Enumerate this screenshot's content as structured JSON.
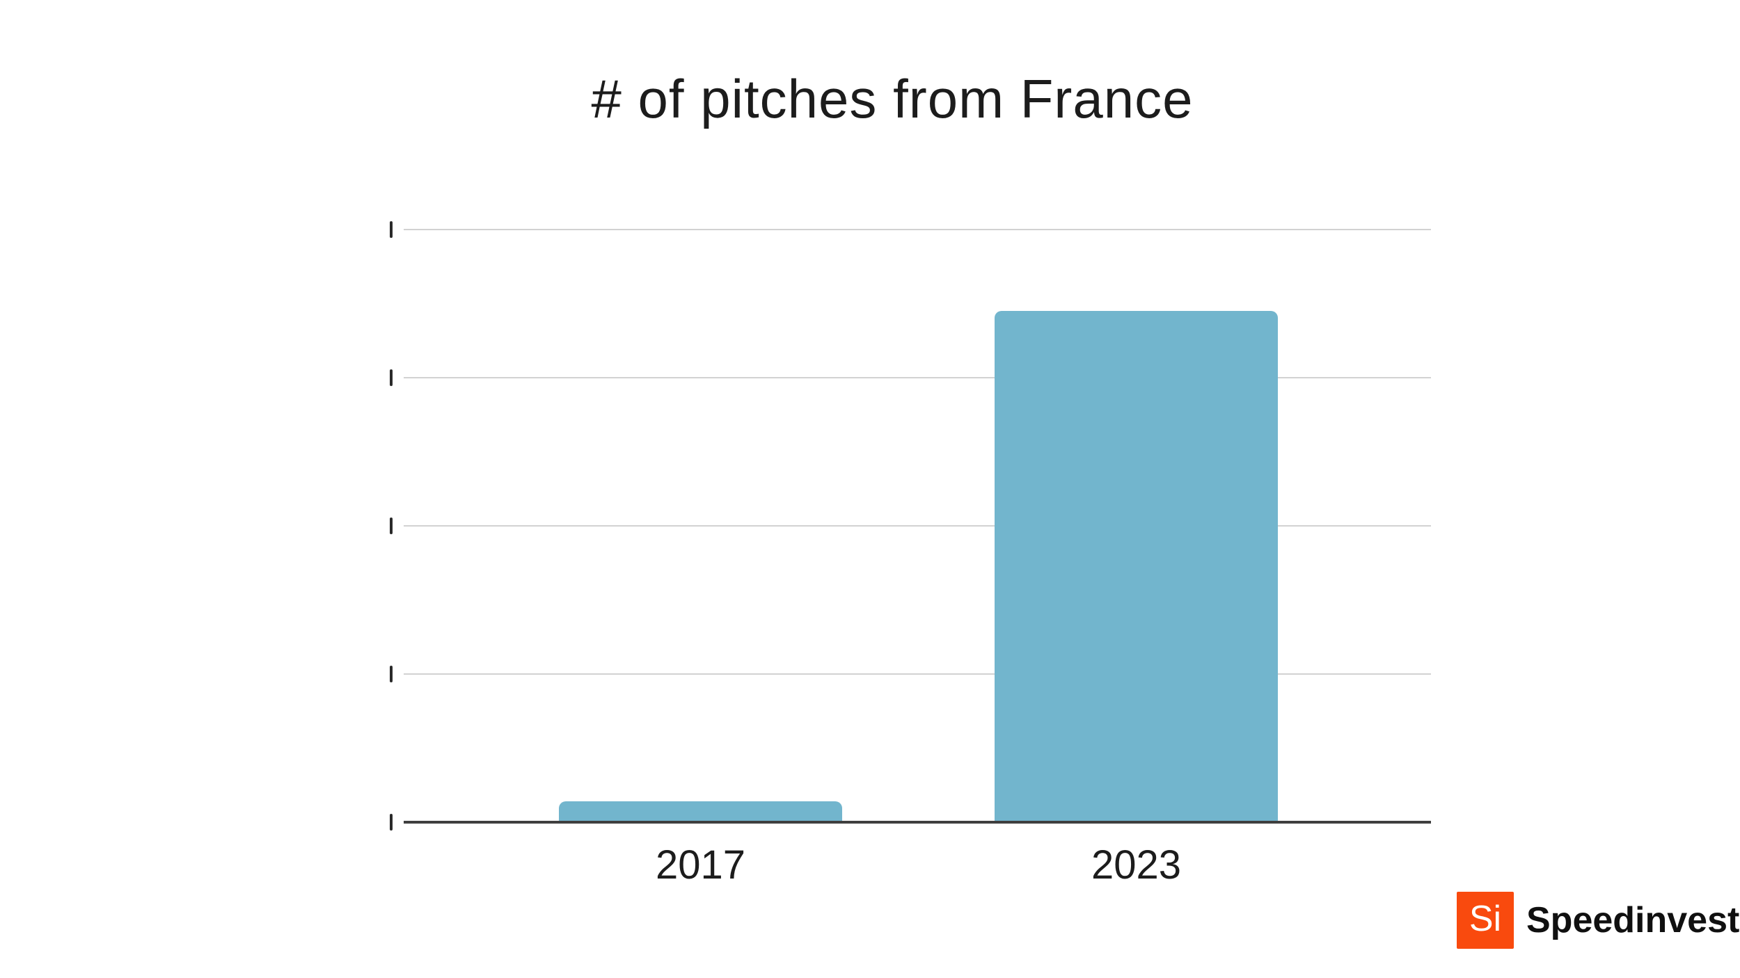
{
  "page": {
    "background": "#ffffff",
    "text_color": "#1c1c1c"
  },
  "chart_data": {
    "type": "bar",
    "title": "# of pitches from France",
    "categories": [
      "2017",
      "2023"
    ],
    "values": [
      0.14,
      3.45
    ],
    "value_note": "y-axis ticks are unlabeled; values measured in gridline intervals (2023 bar ≈ 3.45 intervals, 2017 bar ≈ 0.14 intervals, ratio ≈ 25:1)",
    "xlabel": "",
    "ylabel": "",
    "ylim": [
      0,
      4
    ],
    "y_tick_count": 5,
    "y_tick_labels": [
      "",
      "",
      "",
      "",
      ""
    ],
    "grid": "horizontal",
    "legend": "none",
    "bar_color": "#72b5cd",
    "grid_color": "#d2d2d2",
    "axis_color": "#3f3f3f",
    "tick_color": "#2a2a2a"
  },
  "footer": {
    "logo_monogram": "Si",
    "logo_text": "Speedinvest",
    "logo_bg_color": "#f94a0e",
    "logo_monogram_color": "#ffffff",
    "wordmark_color": "#101010"
  }
}
